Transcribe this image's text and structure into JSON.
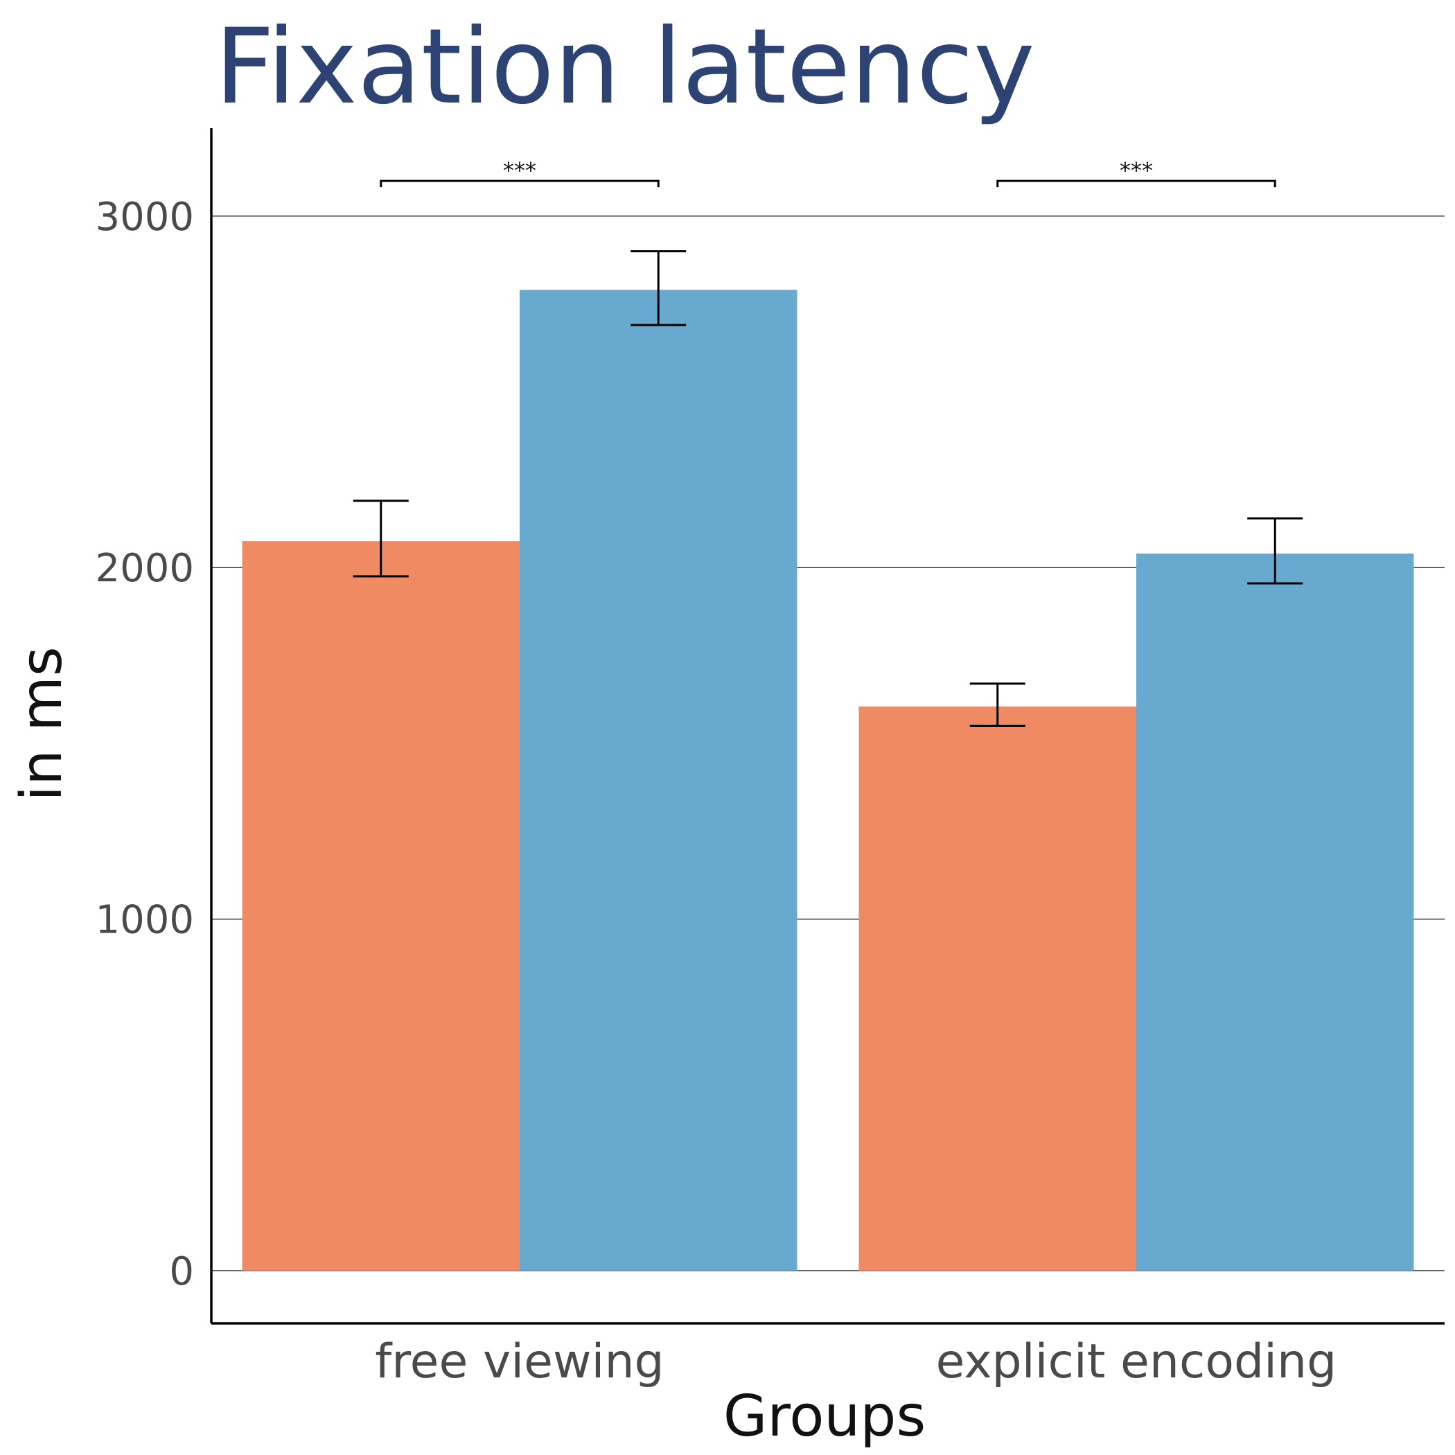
{
  "chart_data": {
    "type": "bar",
    "title": "Fixation latency",
    "xlabel": "Groups",
    "ylabel": "in ms",
    "categories": [
      "free viewing",
      "explicit encoding"
    ],
    "series": [
      {
        "color": "#ef8a62",
        "values": [
          2075,
          1605
        ],
        "error": [
          [
            1975,
            2190
          ],
          [
            1550,
            1670
          ]
        ]
      },
      {
        "color": "#67a9cf",
        "values": [
          2790,
          2040
        ],
        "error": [
          [
            2690,
            2900
          ],
          [
            1955,
            2140
          ]
        ]
      }
    ],
    "ylim": [
      -150,
      3250
    ],
    "yticks": [
      0,
      1000,
      2000,
      3000
    ],
    "grid": true,
    "significance": [
      {
        "category": 0,
        "label": "***",
        "value": 3100
      },
      {
        "category": 1,
        "label": "***",
        "value": 3100
      }
    ]
  }
}
